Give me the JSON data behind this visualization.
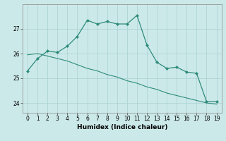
{
  "line1_x": [
    0,
    1,
    2,
    3,
    4,
    5,
    6,
    7,
    8,
    9,
    10,
    11,
    12,
    13,
    14,
    15,
    16,
    17,
    18,
    19
  ],
  "line1_y": [
    25.3,
    25.8,
    26.1,
    26.05,
    26.3,
    26.7,
    27.35,
    27.2,
    27.3,
    27.2,
    27.2,
    27.55,
    26.35,
    25.65,
    25.4,
    25.45,
    25.25,
    25.2,
    24.05,
    24.05
  ],
  "line2_x": [
    0,
    1,
    2,
    3,
    4,
    5,
    6,
    7,
    8,
    9,
    10,
    11,
    12,
    13,
    14,
    15,
    16,
    17,
    18,
    19
  ],
  "line2_y": [
    25.95,
    26.0,
    25.9,
    25.8,
    25.7,
    25.55,
    25.4,
    25.3,
    25.15,
    25.05,
    24.9,
    24.8,
    24.65,
    24.55,
    24.4,
    24.3,
    24.2,
    24.1,
    24.0,
    23.95
  ],
  "color": "#2e8b7a",
  "bg_color": "#cce9e9",
  "grid_color": "#afd4d4",
  "xlabel": "Humidex (Indice chaleur)",
  "ylim": [
    23.6,
    28.0
  ],
  "xlim": [
    -0.5,
    19.5
  ],
  "yticks": [
    24,
    25,
    26,
    27
  ],
  "xticks": [
    0,
    1,
    2,
    3,
    4,
    5,
    6,
    7,
    8,
    9,
    10,
    11,
    12,
    13,
    14,
    15,
    16,
    17,
    18,
    19
  ],
  "marker": "D",
  "markersize": 2.0,
  "linewidth1": 0.9,
  "linewidth2": 0.8,
  "tick_labelsize": 5.5,
  "xlabel_fontsize": 6.5
}
